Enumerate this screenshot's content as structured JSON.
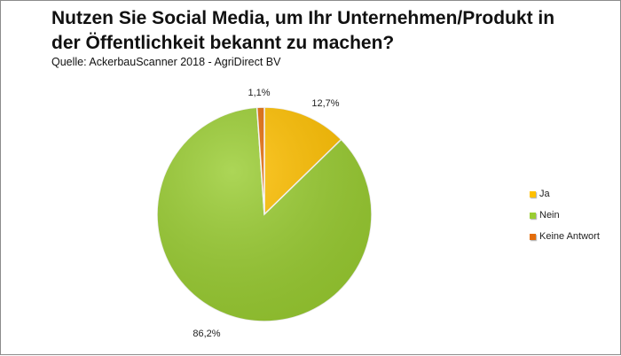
{
  "chart_data": {
    "type": "pie",
    "title": "Nutzen Sie Social Media, um Ihr Unternehmen/Produkt in der Öffentlichkeit bekannt zu machen?",
    "subtitle": "Quelle: AckerbauScanner 2018 - AgriDirect BV",
    "categories": [
      "Ja",
      "Nein",
      "Keine Antwort"
    ],
    "values": [
      12.7,
      86.2,
      1.1
    ],
    "value_labels": [
      "12,7%",
      "86,2%",
      "1,1%"
    ],
    "colors": [
      "#ffc000",
      "#9acd32",
      "#e36c0a"
    ],
    "legend_position": "right",
    "start_angle": "12 o'clock, clockwise"
  }
}
